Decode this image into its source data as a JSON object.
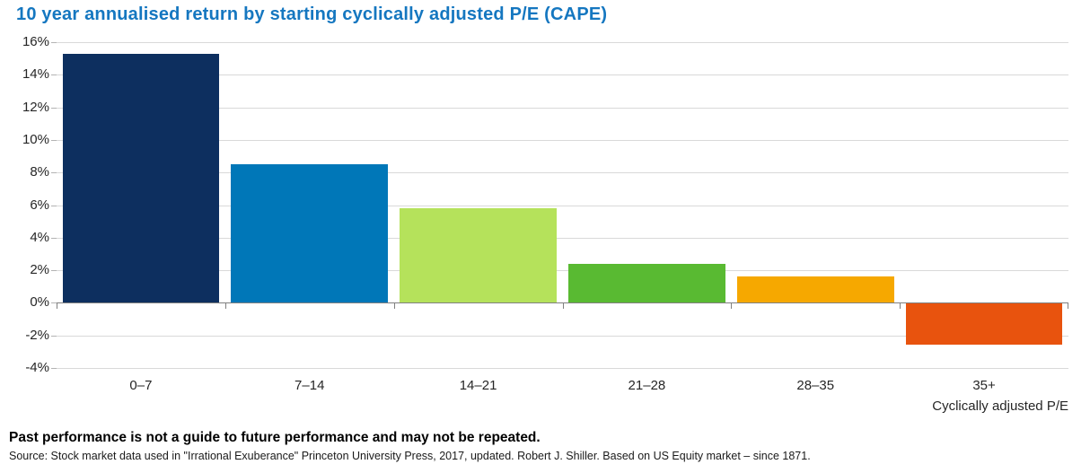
{
  "chart_data": {
    "type": "bar",
    "title": "10 year annualised return by starting cyclically adjusted P/E (CAPE)",
    "categories": [
      "0–7",
      "7–14",
      "14–21",
      "21–28",
      "28–35",
      "35+"
    ],
    "values": [
      15.3,
      8.5,
      5.8,
      2.4,
      1.6,
      -2.6
    ],
    "bar_colors": [
      "#0d2f5f",
      "#0077b8",
      "#b5e25b",
      "#59ba32",
      "#f6a800",
      "#e8530e"
    ],
    "xlabel": "Cyclically adjusted P/E",
    "ylabel": "",
    "ylim": [
      -4,
      16
    ],
    "ytick_step": 2,
    "ytick_labels": [
      "16%",
      "14%",
      "12%",
      "10%",
      "8%",
      "6%",
      "4%",
      "2%",
      "0%",
      "-2%",
      "-4%"
    ],
    "grid": true,
    "legend": "none",
    "colors": {
      "title": "#1577c0",
      "gridline": "#d9d9d9",
      "axis": "#808080",
      "tick_label": "#262626"
    }
  },
  "footer": {
    "disclaimer": "Past performance is not a guide to future performance and may not be repeated.",
    "source": "Source: Stock market data used in \"Irrational Exuberance\" Princeton University Press, 2017, updated. Robert J. Shiller. Based on US Equity market – since 1871."
  }
}
